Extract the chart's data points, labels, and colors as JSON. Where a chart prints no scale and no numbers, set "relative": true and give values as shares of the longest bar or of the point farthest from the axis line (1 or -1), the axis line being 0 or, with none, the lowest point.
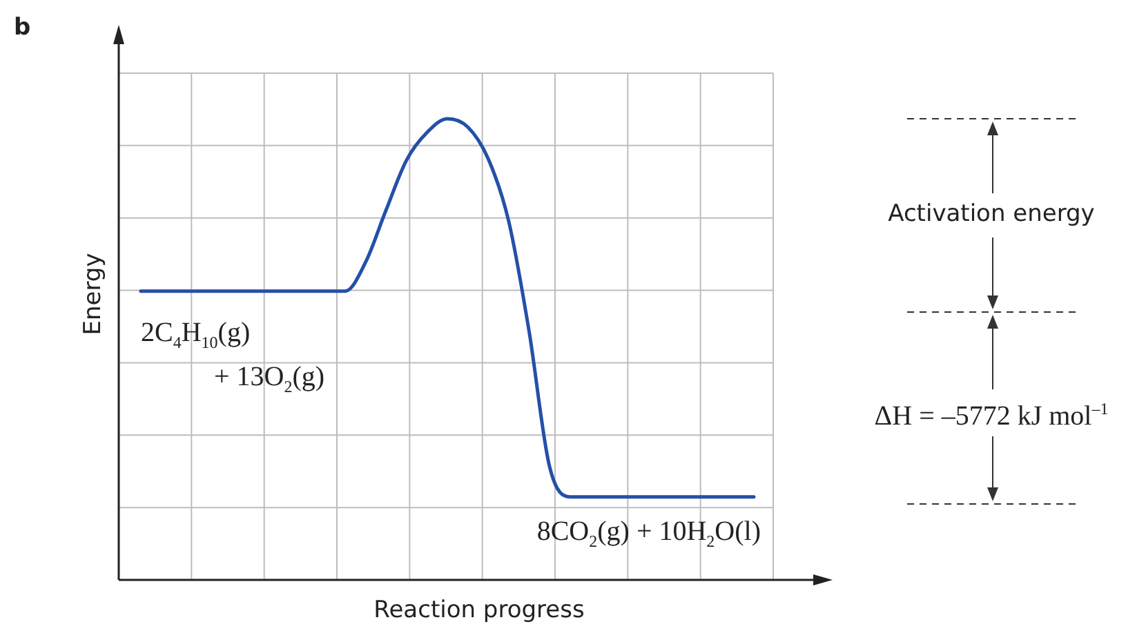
{
  "chart_data": {
    "type": "line",
    "relative": true,
    "xlabel": "Reaction progress",
    "ylabel": "Energy",
    "grid": true,
    "legend": false,
    "marker": "none",
    "line_style": "solid",
    "categories": [
      null,
      null,
      null,
      null,
      null,
      null,
      null,
      null,
      null,
      null,
      null,
      null,
      null,
      null,
      null,
      null,
      null,
      null,
      null,
      null,
      null,
      null,
      null,
      null,
      null,
      null,
      null,
      null,
      null,
      null,
      null
    ],
    "series": [
      {
        "color": "#2450a8",
        "values": [
          0.626,
          0.626,
          0.626,
          0.626,
          0.626,
          0.626,
          0.626,
          0.626,
          0.626,
          0.626,
          0.626,
          0.689,
          0.802,
          0.91,
          0.97,
          1,
          0.982,
          0.913,
          0.778,
          0.539,
          0.246,
          0.18,
          0.18,
          0.18,
          0.18,
          0.18,
          0.18,
          0.18,
          0.18,
          0.18,
          0.18
        ]
      }
    ],
    "annotations": [
      "b",
      "2C$_{4}$H$_{10}$(g)",
      "+ 13O$_{2}$(g)",
      "8CO$_{2}$(g) + 10H$_{2}$O(l)",
      "Activation energy",
      "ΔH = –5772 kJ mol$^{–1}$"
    ]
  }
}
